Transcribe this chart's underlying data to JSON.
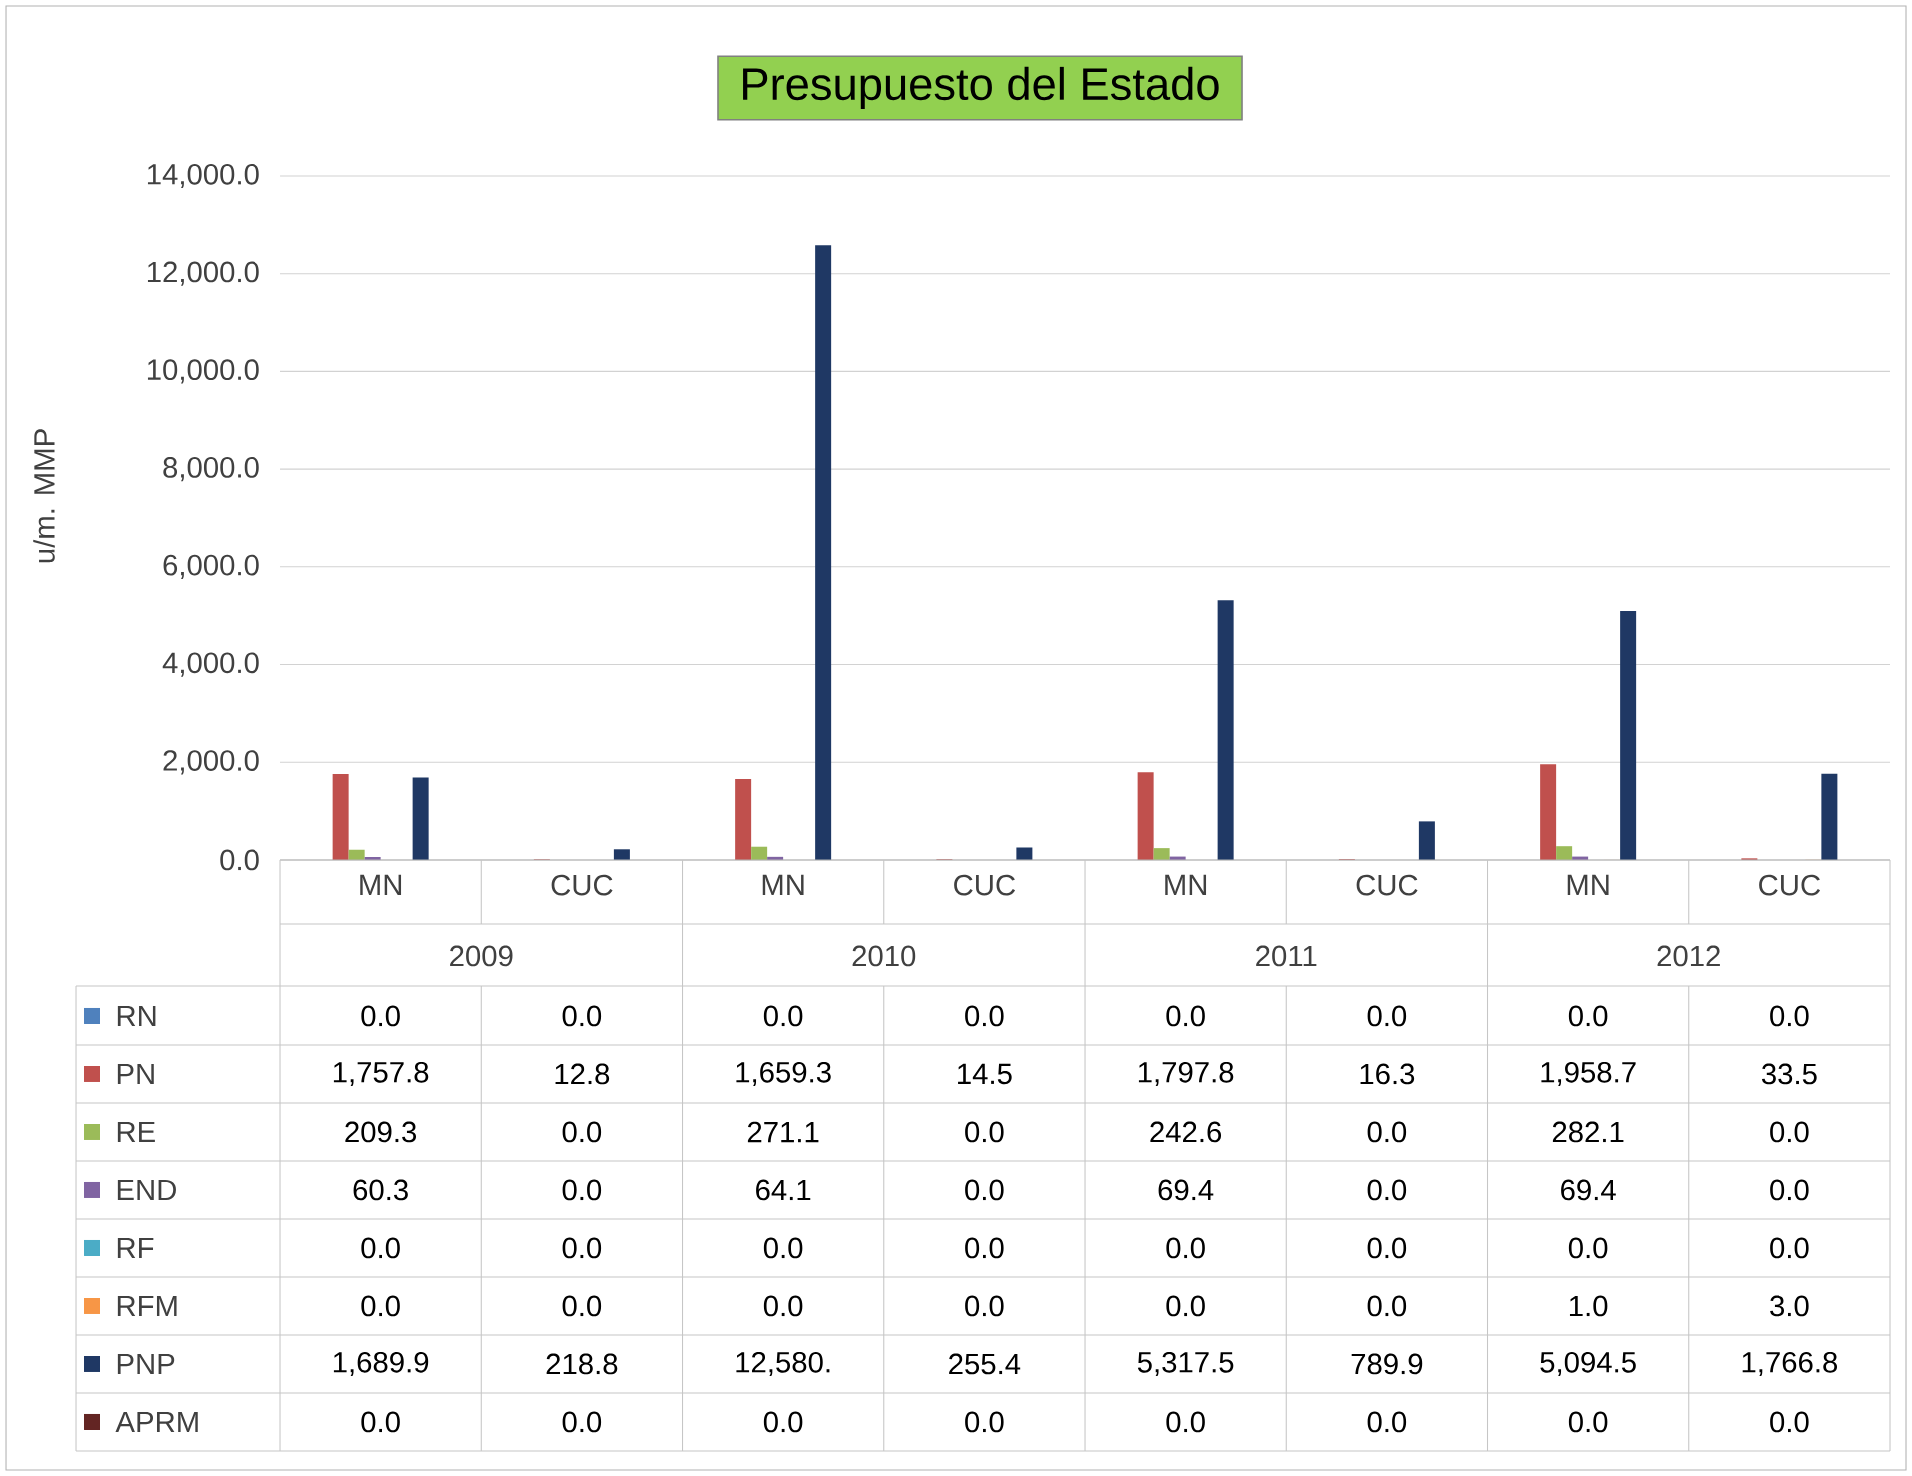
{
  "chart_data": {
    "type": "bar",
    "title": "Presupuesto del Estado",
    "ylabel": "u/m. MMP",
    "categories": [
      "MN",
      "CUC",
      "MN",
      "CUC",
      "MN",
      "CUC",
      "MN",
      "CUC"
    ],
    "annotations": [
      "2009",
      "2010",
      "2011",
      "2012"
    ],
    "ylim": [
      0,
      14000
    ],
    "yticks": [
      {
        "value": 0,
        "label": "0.0"
      },
      {
        "value": 2000,
        "label": "2,000.0"
      },
      {
        "value": 4000,
        "label": "4,000.0"
      },
      {
        "value": 6000,
        "label": "6,000.0"
      },
      {
        "value": 8000,
        "label": "8,000.0"
      },
      {
        "value": 10000,
        "label": "10,000.0"
      },
      {
        "value": 12000,
        "label": "12,000.0"
      },
      {
        "value": 14000,
        "label": "14,000.0"
      }
    ],
    "grid": "y",
    "legend": "bottom",
    "series": [
      {
        "name": "RN",
        "color": "#4f81bd",
        "values": [
          0,
          0,
          0,
          0,
          0,
          0,
          0,
          0
        ],
        "value_labels": [
          "0.0",
          "0.0",
          "0.0",
          "0.0",
          "0.0",
          "0.0",
          "0.0",
          "0.0"
        ]
      },
      {
        "name": "PN",
        "color": "#c0504d",
        "values": [
          1757.8,
          12.8,
          1659.3,
          14.5,
          1797.8,
          16.3,
          1958.7,
          33.5
        ],
        "value_labels": [
          "1,757.8",
          "12.8",
          "1,659.3",
          "14.5",
          "1,797.8",
          "16.3",
          "1,958.7",
          "33.5"
        ]
      },
      {
        "name": "RE",
        "color": "#9bbb59",
        "values": [
          209.3,
          0,
          271.1,
          0,
          242.6,
          0,
          282.1,
          0
        ],
        "value_labels": [
          "209.3",
          "0.0",
          "271.1",
          "0.0",
          "242.6",
          "0.0",
          "282.1",
          "0.0"
        ]
      },
      {
        "name": "END",
        "color": "#8064a2",
        "values": [
          60.3,
          0,
          64.1,
          0,
          69.4,
          0,
          69.4,
          0
        ],
        "value_labels": [
          "60.3",
          "0.0",
          "64.1",
          "0.0",
          "69.4",
          "0.0",
          "69.4",
          "0.0"
        ]
      },
      {
        "name": "RF",
        "color": "#4bacc6",
        "values": [
          0,
          0,
          0,
          0,
          0,
          0,
          0,
          0
        ],
        "value_labels": [
          "0.0",
          "0.0",
          "0.0",
          "0.0",
          "0.0",
          "0.0",
          "0.0",
          "0.0"
        ]
      },
      {
        "name": "RFM",
        "color": "#f79646",
        "values": [
          0,
          0,
          0,
          0,
          0,
          0,
          1.0,
          3.0
        ],
        "value_labels": [
          "0.0",
          "0.0",
          "0.0",
          "0.0",
          "0.0",
          "0.0",
          "1.0",
          "3.0"
        ]
      },
      {
        "name": "PNP",
        "color": "#1f3864",
        "values": [
          1689.9,
          218.8,
          12580,
          255.4,
          5317.5,
          789.9,
          5094.5,
          1766.8
        ],
        "value_labels": [
          "1,689.9",
          "218.8",
          "12,580.",
          "255.4",
          "5,317.5",
          "789.9",
          "5,094.5",
          "1,766.8"
        ]
      },
      {
        "name": "APRM",
        "color": "#632523",
        "values": [
          0,
          0,
          0,
          0,
          0,
          0,
          0,
          0
        ],
        "value_labels": [
          "0.0",
          "0.0",
          "0.0",
          "0.0",
          "0.0",
          "0.0",
          "0.0",
          "0.0"
        ]
      }
    ]
  }
}
